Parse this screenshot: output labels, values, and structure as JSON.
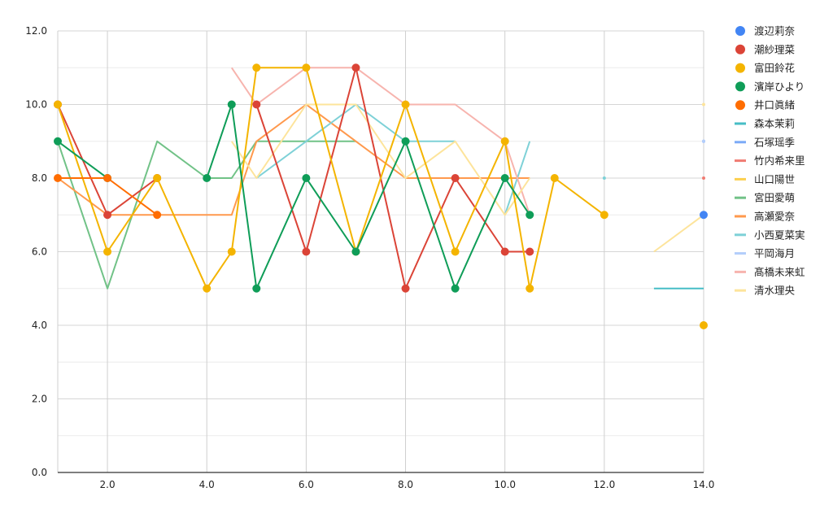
{
  "chart_data": {
    "type": "line",
    "title": "",
    "xlabel": "",
    "ylabel": "",
    "xlim": [
      1,
      14
    ],
    "ylim": [
      0,
      12
    ],
    "x_ticks": [
      "2.0",
      "4.0",
      "6.0",
      "8.0",
      "10.0",
      "12.0",
      "14.0"
    ],
    "y_ticks": [
      "0.0",
      "2.0",
      "4.0",
      "6.0",
      "8.0",
      "10.0",
      "12.0"
    ],
    "grid": true,
    "legend_position": "right",
    "series": [
      {
        "name": "渡辺莉奈",
        "color": "#4285F4",
        "marker": true,
        "points": [
          [
            14,
            7
          ]
        ]
      },
      {
        "name": "潮紗理菜",
        "color": "#DB4437",
        "marker": true,
        "points": [
          [
            1,
            10
          ],
          [
            2,
            7
          ],
          [
            3,
            8
          ],
          [
            null,
            null
          ],
          [
            5,
            10
          ],
          [
            6,
            6
          ],
          [
            7,
            11
          ],
          [
            8,
            5
          ],
          [
            9,
            8
          ],
          [
            10,
            6
          ],
          [
            10.5,
            6
          ]
        ]
      },
      {
        "name": "富田鈴花",
        "color": "#F4B400",
        "marker": true,
        "points": [
          [
            1,
            10
          ],
          [
            2,
            6
          ],
          [
            3,
            8
          ],
          [
            4,
            5
          ],
          [
            4.5,
            6
          ],
          [
            5,
            11
          ],
          [
            6,
            11
          ],
          [
            7,
            6
          ],
          [
            8,
            10
          ],
          [
            9,
            6
          ],
          [
            10,
            9
          ],
          [
            10.5,
            5
          ],
          [
            11,
            8
          ],
          [
            12,
            7
          ],
          [
            null,
            null
          ],
          [
            14,
            4
          ]
        ]
      },
      {
        "name": "濱岸ひより",
        "color": "#0F9D58",
        "marker": true,
        "points": [
          [
            1,
            9
          ],
          [
            2,
            8
          ],
          [
            null,
            null
          ],
          [
            4,
            8
          ],
          [
            4.5,
            10
          ],
          [
            5,
            5
          ],
          [
            6,
            8
          ],
          [
            7,
            6
          ],
          [
            8,
            9
          ],
          [
            9,
            5
          ],
          [
            10,
            8
          ],
          [
            10.5,
            7
          ]
        ]
      },
      {
        "name": "井口眞緒",
        "color": "#FF6D01",
        "marker": true,
        "points": [
          [
            1,
            8
          ],
          [
            2,
            8
          ],
          [
            3,
            7
          ]
        ]
      },
      {
        "name": "森本茉莉",
        "color": "#46BDC6",
        "marker": false,
        "points": [
          [
            13,
            5
          ],
          [
            14,
            5
          ]
        ]
      },
      {
        "name": "石塚瑶季",
        "color": "#7BAAF7",
        "marker": false,
        "points": [
          [
            14,
            9
          ]
        ]
      },
      {
        "name": "竹内希来里",
        "color": "#F07B72",
        "marker": false,
        "points": [
          [
            14,
            8
          ]
        ]
      },
      {
        "name": "山口陽世",
        "color": "#FCD04F",
        "marker": false,
        "points": [
          [
            12,
            7
          ]
        ]
      },
      {
        "name": "宮田愛萌",
        "color": "#71C287",
        "marker": false,
        "points": [
          [
            1,
            9
          ],
          [
            2,
            5
          ],
          [
            3,
            9
          ],
          [
            4,
            8
          ],
          [
            4.5,
            8
          ],
          [
            5,
            9
          ],
          [
            6,
            9
          ],
          [
            7,
            9
          ]
        ]
      },
      {
        "name": "高瀬愛奈",
        "color": "#FF994D",
        "marker": false,
        "points": [
          [
            1,
            8
          ],
          [
            2,
            7
          ],
          [
            3,
            7
          ],
          [
            4,
            7
          ],
          [
            4.5,
            7
          ],
          [
            5,
            9
          ],
          [
            6,
            10
          ],
          [
            7,
            9
          ],
          [
            8,
            8
          ],
          [
            9,
            8
          ],
          [
            10,
            8
          ],
          [
            10.5,
            8
          ]
        ]
      },
      {
        "name": "小西夏菜実",
        "color": "#7ED1D7",
        "marker": false,
        "points": [
          [
            5,
            8
          ],
          [
            6,
            9
          ],
          [
            7,
            10
          ],
          [
            8,
            9
          ],
          [
            9,
            9
          ],
          [
            null,
            null
          ],
          [
            10,
            7
          ],
          [
            10.5,
            9
          ],
          [
            null,
            null
          ],
          [
            12,
            8
          ]
        ]
      },
      {
        "name": "平岡海月",
        "color": "#B3CEFB",
        "marker": false,
        "points": [
          [
            14,
            9
          ]
        ]
      },
      {
        "name": "髙橋未来虹",
        "color": "#F7B4AE",
        "marker": false,
        "points": [
          [
            4.5,
            11
          ],
          [
            5,
            10
          ],
          [
            6,
            11
          ],
          [
            7,
            11
          ],
          [
            8,
            10
          ],
          [
            9,
            10
          ],
          [
            10,
            9
          ],
          [
            10.5,
            7
          ]
        ]
      },
      {
        "name": "清水理央",
        "color": "#FDE49B",
        "marker": false,
        "points": [
          [
            4.5,
            9
          ],
          [
            5,
            8
          ],
          [
            6,
            10
          ],
          [
            7,
            10
          ],
          [
            8,
            8
          ],
          [
            9,
            9
          ],
          [
            10,
            7
          ],
          [
            10.5,
            8
          ],
          [
            null,
            null
          ],
          [
            13,
            6
          ],
          [
            14,
            7
          ],
          [
            null,
            null
          ],
          [
            14,
            10
          ]
        ]
      }
    ]
  }
}
